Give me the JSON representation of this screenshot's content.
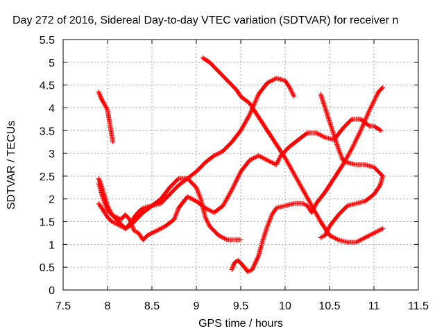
{
  "chart_data": {
    "type": "scatter",
    "title": "Day 272 of 2016, Sidereal Day-to-day VTEC variation (SDTVAR) for receiver n",
    "xlabel": "GPS time / hours",
    "ylabel": "SDTVAR / TECUs",
    "xlim": [
      7.5,
      11.5
    ],
    "ylim": [
      0,
      5.5
    ],
    "xticks": [
      7.5,
      8,
      8.5,
      9,
      9.5,
      10,
      10.5,
      11,
      11.5
    ],
    "xtick_labels": [
      "7.5",
      "8",
      "8.5",
      "9",
      "9.5",
      "10",
      "10.5",
      "11",
      "11.5"
    ],
    "yticks": [
      0,
      0.5,
      1,
      1.5,
      2,
      2.5,
      3,
      3.5,
      4,
      4.5,
      5,
      5.5
    ],
    "ytick_labels": [
      "0",
      "0.5",
      "1",
      "1.5",
      "2",
      "2.5",
      "3",
      "3.5",
      "4",
      "4.5",
      "5",
      "5.5"
    ],
    "grid": true,
    "marker": "plus",
    "color": "#ff0000",
    "series": [
      {
        "points": [
          [
            7.9,
            4.35
          ],
          [
            7.93,
            4.2
          ],
          [
            7.96,
            4.1
          ],
          [
            8.0,
            3.95
          ],
          [
            8.03,
            3.6
          ],
          [
            8.06,
            3.25
          ]
        ]
      },
      {
        "points": [
          [
            7.9,
            1.9
          ],
          [
            7.95,
            1.75
          ],
          [
            8.0,
            1.6
          ],
          [
            8.05,
            1.5
          ],
          [
            8.1,
            1.45
          ],
          [
            8.15,
            1.4
          ],
          [
            8.2,
            1.35
          ],
          [
            8.25,
            1.45
          ],
          [
            8.3,
            1.6
          ],
          [
            8.35,
            1.72
          ],
          [
            8.4,
            1.8
          ],
          [
            8.5,
            1.85
          ],
          [
            8.6,
            1.9
          ],
          [
            8.7,
            2.1
          ],
          [
            8.8,
            2.3
          ],
          [
            8.9,
            2.45
          ],
          [
            9.0,
            2.6
          ],
          [
            9.05,
            2.7
          ],
          [
            9.1,
            2.8
          ],
          [
            9.2,
            2.95
          ],
          [
            9.3,
            3.05
          ],
          [
            9.4,
            3.25
          ],
          [
            9.5,
            3.5
          ],
          [
            9.6,
            3.85
          ],
          [
            9.7,
            4.3
          ],
          [
            9.8,
            4.55
          ],
          [
            9.9,
            4.65
          ],
          [
            10.0,
            4.6
          ],
          [
            10.05,
            4.45
          ],
          [
            10.1,
            4.25
          ]
        ]
      },
      {
        "points": [
          [
            7.9,
            2.45
          ],
          [
            7.93,
            2.3
          ],
          [
            7.96,
            2.1
          ],
          [
            8.0,
            1.85
          ],
          [
            8.05,
            1.65
          ],
          [
            8.1,
            1.55
          ],
          [
            8.15,
            1.45
          ],
          [
            8.2,
            1.35
          ],
          [
            8.25,
            1.4
          ],
          [
            8.3,
            1.5
          ],
          [
            8.4,
            1.7
          ],
          [
            8.5,
            1.85
          ],
          [
            8.6,
            2.0
          ],
          [
            8.7,
            2.25
          ],
          [
            8.8,
            2.45
          ],
          [
            8.9,
            2.45
          ],
          [
            9.0,
            2.25
          ],
          [
            9.05,
            2.0
          ],
          [
            9.1,
            1.6
          ],
          [
            9.15,
            1.4
          ],
          [
            9.25,
            1.2
          ],
          [
            9.35,
            1.1
          ],
          [
            9.5,
            1.1
          ]
        ]
      },
      {
        "points": [
          [
            7.9,
            2.35
          ],
          [
            7.95,
            2.0
          ],
          [
            8.0,
            1.75
          ],
          [
            8.05,
            1.65
          ],
          [
            8.1,
            1.6
          ],
          [
            8.15,
            1.55
          ],
          [
            8.2,
            1.65
          ],
          [
            8.25,
            1.55
          ],
          [
            8.3,
            1.3
          ],
          [
            8.35,
            1.25
          ],
          [
            8.4,
            1.1
          ],
          [
            8.45,
            1.2
          ],
          [
            8.55,
            1.3
          ],
          [
            8.65,
            1.4
          ],
          [
            8.75,
            1.55
          ],
          [
            8.8,
            1.8
          ],
          [
            8.9,
            2.05
          ],
          [
            9.0,
            1.95
          ],
          [
            9.1,
            1.8
          ],
          [
            9.2,
            1.7
          ],
          [
            9.3,
            1.85
          ],
          [
            9.4,
            2.2
          ],
          [
            9.5,
            2.6
          ],
          [
            9.6,
            2.85
          ],
          [
            9.7,
            2.95
          ],
          [
            9.8,
            2.85
          ],
          [
            9.9,
            2.75
          ],
          [
            9.95,
            2.95
          ],
          [
            10.05,
            3.15
          ],
          [
            10.15,
            3.3
          ],
          [
            10.25,
            3.45
          ],
          [
            10.35,
            3.45
          ],
          [
            10.45,
            3.35
          ],
          [
            10.55,
            3.3
          ],
          [
            10.65,
            3.55
          ],
          [
            10.75,
            3.75
          ],
          [
            10.85,
            3.75
          ],
          [
            10.95,
            3.6
          ],
          [
            11.0,
            3.6
          ],
          [
            11.08,
            3.5
          ]
        ]
      },
      {
        "points": [
          [
            9.07,
            5.1
          ],
          [
            9.15,
            5.0
          ],
          [
            9.25,
            4.8
          ],
          [
            9.35,
            4.6
          ],
          [
            9.45,
            4.4
          ],
          [
            9.5,
            4.25
          ],
          [
            9.6,
            4.1
          ],
          [
            9.7,
            3.8
          ],
          [
            9.8,
            3.5
          ],
          [
            9.9,
            3.2
          ],
          [
            10.0,
            2.9
          ],
          [
            10.1,
            2.55
          ],
          [
            10.2,
            2.2
          ],
          [
            10.3,
            1.85
          ],
          [
            10.4,
            1.5
          ],
          [
            10.5,
            1.2
          ],
          [
            10.6,
            1.1
          ],
          [
            10.7,
            1.05
          ],
          [
            10.8,
            1.05
          ],
          [
            10.9,
            1.15
          ],
          [
            11.0,
            1.25
          ],
          [
            11.1,
            1.35
          ]
        ]
      },
      {
        "points": [
          [
            9.4,
            0.45
          ],
          [
            9.43,
            0.6
          ],
          [
            9.47,
            0.65
          ],
          [
            9.52,
            0.55
          ],
          [
            9.58,
            0.4
          ],
          [
            9.63,
            0.45
          ],
          [
            9.7,
            0.75
          ],
          [
            9.75,
            1.1
          ],
          [
            9.8,
            1.4
          ],
          [
            9.85,
            1.65
          ],
          [
            9.9,
            1.8
          ],
          [
            10.0,
            1.85
          ],
          [
            10.1,
            1.9
          ],
          [
            10.2,
            1.9
          ],
          [
            10.25,
            1.85
          ],
          [
            10.3,
            1.7
          ],
          [
            10.35,
            1.9
          ],
          [
            10.45,
            2.15
          ],
          [
            10.55,
            2.45
          ],
          [
            10.65,
            2.75
          ],
          [
            10.75,
            3.1
          ],
          [
            10.85,
            3.5
          ],
          [
            10.95,
            3.95
          ],
          [
            11.05,
            4.35
          ],
          [
            11.1,
            4.45
          ]
        ]
      },
      {
        "points": [
          [
            10.4,
            4.3
          ],
          [
            10.45,
            4.0
          ],
          [
            10.5,
            3.7
          ],
          [
            10.55,
            3.4
          ],
          [
            10.6,
            3.1
          ],
          [
            10.65,
            2.85
          ],
          [
            10.7,
            2.8
          ],
          [
            10.8,
            2.75
          ],
          [
            10.9,
            2.75
          ],
          [
            11.0,
            2.7
          ],
          [
            11.05,
            2.6
          ],
          [
            11.1,
            2.5
          ],
          [
            11.07,
            2.3
          ],
          [
            11.0,
            2.1
          ],
          [
            10.9,
            1.95
          ],
          [
            10.8,
            1.9
          ],
          [
            10.7,
            1.85
          ],
          [
            10.6,
            1.65
          ],
          [
            10.5,
            1.4
          ],
          [
            10.45,
            1.2
          ],
          [
            10.4,
            1.15
          ]
        ]
      }
    ]
  }
}
